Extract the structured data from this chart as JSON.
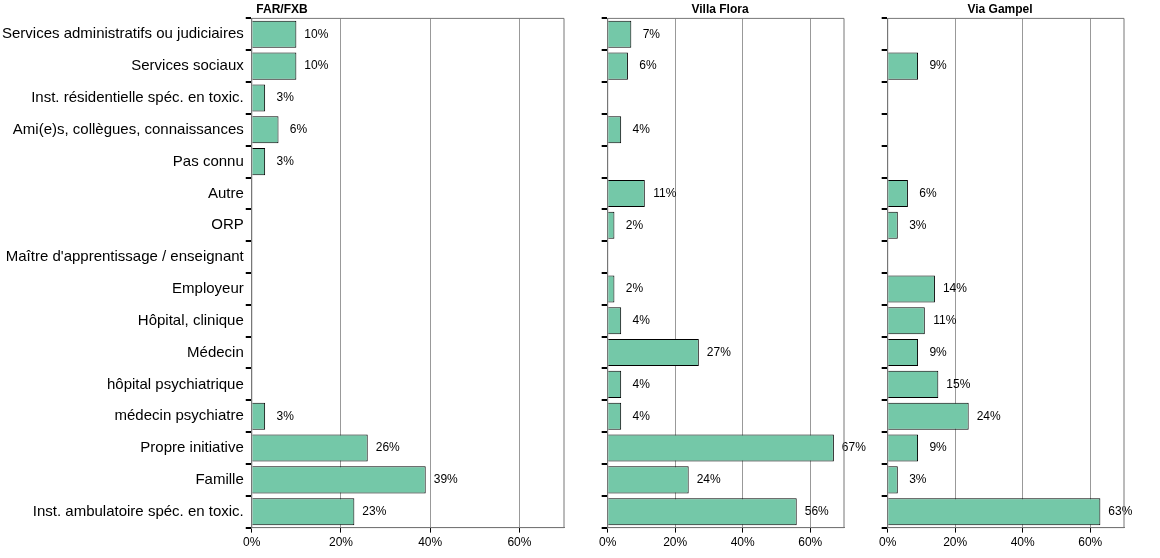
{
  "chart_data": [
    {
      "type": "bar",
      "orientation": "horizontal",
      "title": "FAR/FXB",
      "categories": [
        "Services administratifs ou judiciaires",
        "Services sociaux",
        "Inst. résidentielle spéc. en toxic.",
        "Ami(e)s, collègues, connaissances",
        "Pas connu",
        "Autre",
        "ORP",
        "Maître d'apprentissage / enseignant",
        "Employeur",
        "Hôpital, clinique",
        "Médecin",
        "hôpital psychiatrique",
        "médecin psychiatre",
        "Propre initiative",
        "Famille",
        "Inst. ambulatoire spéc. en toxic."
      ],
      "values": [
        10,
        10,
        3,
        6,
        3,
        null,
        null,
        null,
        null,
        null,
        null,
        null,
        3,
        26,
        39,
        23
      ],
      "value_labels": [
        "10%",
        "10%",
        "3%",
        "6%",
        "3%",
        null,
        null,
        null,
        null,
        null,
        null,
        null,
        "3%",
        "26%",
        "39%",
        "23%"
      ],
      "color": "#74c8a8",
      "xlim": [
        0,
        70
      ],
      "xticks": [
        {
          "value": 0,
          "label": "0%"
        },
        {
          "value": 20,
          "label": "20%"
        },
        {
          "value": 40,
          "label": "40%"
        },
        {
          "value": 60,
          "label": "60%"
        }
      ],
      "grid": "x"
    },
    {
      "type": "bar",
      "orientation": "horizontal",
      "title": "Villa Flora",
      "categories": [
        null,
        null,
        null,
        null,
        null,
        null,
        null,
        null,
        null,
        null,
        null,
        null,
        null,
        null,
        null,
        null
      ],
      "values": [
        7,
        6,
        null,
        4,
        null,
        11,
        2,
        null,
        2,
        4,
        27,
        4,
        4,
        67,
        24,
        56
      ],
      "value_labels": [
        "7%",
        "6%",
        null,
        "4%",
        null,
        "11%",
        "2%",
        null,
        "2%",
        "4%",
        "27%",
        "4%",
        "4%",
        "67%",
        "24%",
        "56%"
      ],
      "color": "#74c8a8",
      "xlim": [
        0,
        70
      ],
      "xticks": [
        {
          "value": 0,
          "label": "0%"
        },
        {
          "value": 20,
          "label": "20%"
        },
        {
          "value": 40,
          "label": "40%"
        },
        {
          "value": 60,
          "label": "60%"
        }
      ],
      "grid": "x",
      "tick_labels": "x"
    },
    {
      "type": "bar",
      "orientation": "horizontal",
      "title": "Via Gampel",
      "categories": [
        null,
        null,
        null,
        null,
        null,
        null,
        null,
        null,
        null,
        null,
        null,
        null,
        null,
        null,
        null,
        null
      ],
      "values": [
        null,
        9,
        null,
        null,
        null,
        6,
        3,
        null,
        14,
        11,
        9,
        15,
        24,
        9,
        3,
        63
      ],
      "value_labels": [
        null,
        "9%",
        null,
        null,
        null,
        "6%",
        "3%",
        null,
        "14%",
        "11%",
        "9%",
        "15%",
        "24%",
        "9%",
        "3%",
        "63%"
      ],
      "color": "#74c8a8",
      "xlim": [
        0,
        70
      ],
      "xticks": [
        {
          "value": 0,
          "label": "0%"
        },
        {
          "value": 20,
          "label": "20%"
        },
        {
          "value": 40,
          "label": "40%"
        },
        {
          "value": 60,
          "label": "60%"
        }
      ],
      "grid": "x",
      "tick_labels": "x"
    }
  ]
}
